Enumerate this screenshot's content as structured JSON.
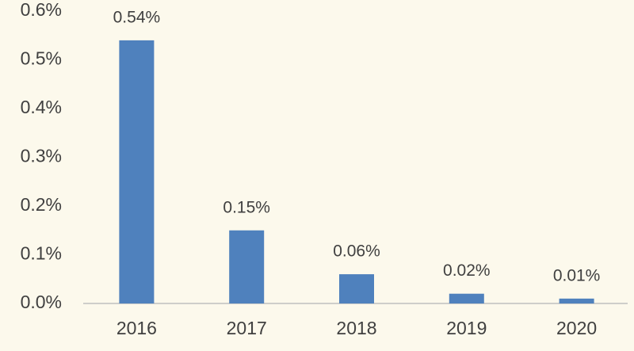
{
  "chart_data": {
    "type": "bar",
    "categories": [
      "2016",
      "2017",
      "2018",
      "2019",
      "2020"
    ],
    "values": [
      0.54,
      0.15,
      0.06,
      0.02,
      0.01
    ],
    "value_labels": [
      "0.54%",
      "0.15%",
      "0.06%",
      "0.02%",
      "0.01%"
    ],
    "color": "#4f81bd",
    "ylim": [
      0,
      0.6
    ],
    "yticks": [
      {
        "value": 0,
        "label": "0.0%"
      },
      {
        "value": 0.1,
        "label": "0.1%"
      },
      {
        "value": 0.2,
        "label": "0.2%"
      },
      {
        "value": 0.3,
        "label": "0.3%"
      },
      {
        "value": 0.4,
        "label": "0.4%"
      },
      {
        "value": 0.5,
        "label": "0.5%"
      },
      {
        "value": 0.6,
        "label": "0.6%"
      }
    ],
    "grid": false
  }
}
